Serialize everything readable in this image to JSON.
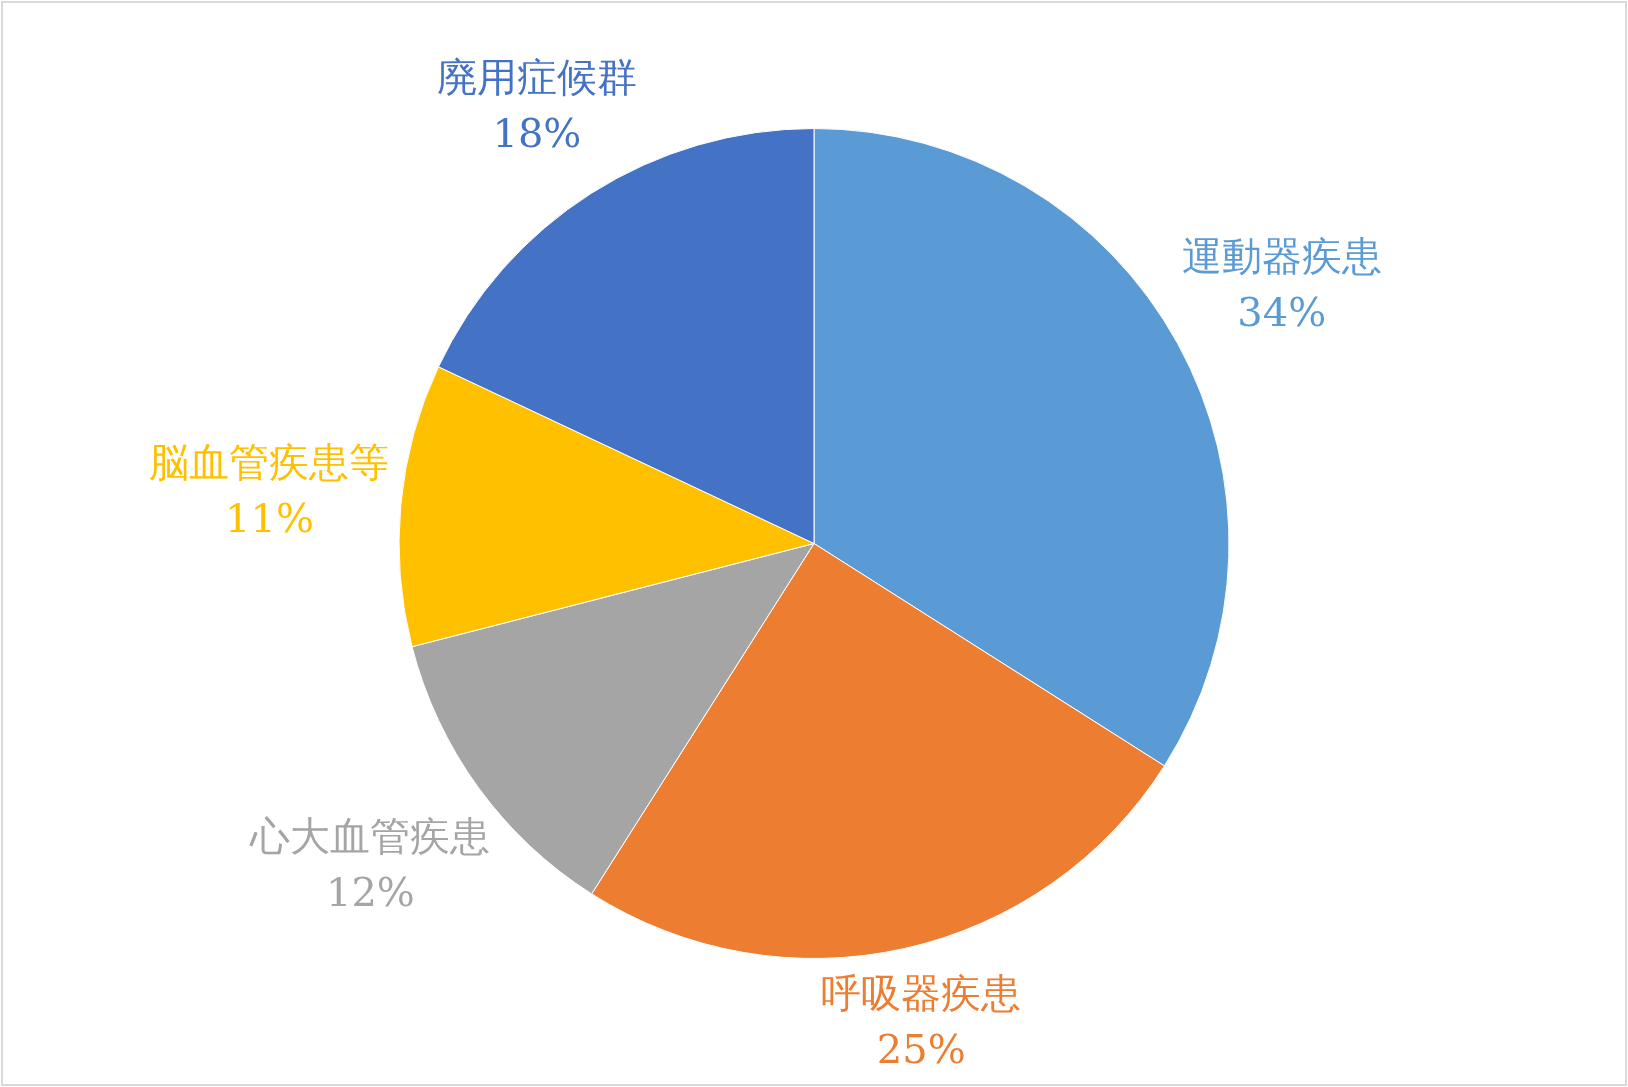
{
  "chart_data": {
    "type": "pie",
    "categories": [
      "運動器疾患",
      "呼吸器疾患",
      "心大血管疾患",
      "脳血管疾患等",
      "廃用症候群"
    ],
    "values": [
      34,
      25,
      12,
      11,
      18
    ],
    "colors": [
      "#5b9bd5",
      "#ed7d31",
      "#a5a5a5",
      "#ffc000",
      "#4472c4"
    ],
    "value_labels": [
      "34%",
      "25%",
      "12%",
      "11%",
      "18%"
    ]
  }
}
